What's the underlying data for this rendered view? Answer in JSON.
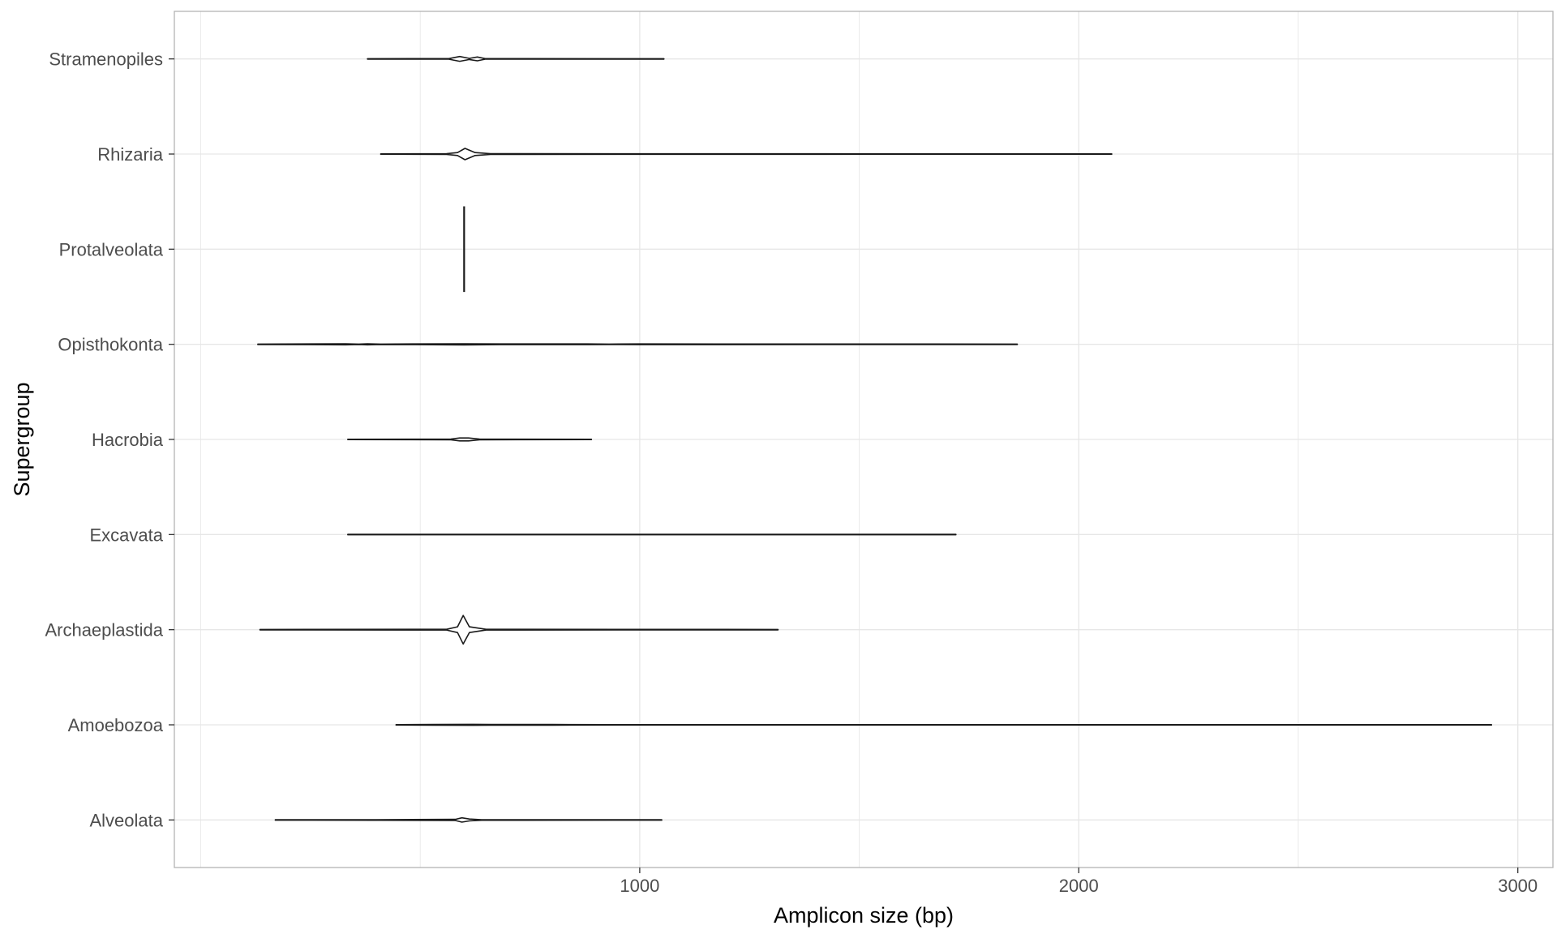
{
  "chart_data": {
    "type": "violin",
    "orientation": "horizontal",
    "xlabel": "Amplicon size (bp)",
    "ylabel": "Supergroup",
    "xlim": [
      -60,
      3080
    ],
    "x_ticks": [
      1000,
      2000,
      3000
    ],
    "grid": true,
    "theme": "light",
    "colors": {
      "outline": "#1a1a1a",
      "grid": "#e6e6e6",
      "panel_border": "#b3b3b3",
      "tick_text": "#4d4d4d"
    },
    "categories": [
      "Alveolata",
      "Amoebozoa",
      "Archaeplastida",
      "Excavata",
      "Hacrobia",
      "Opisthokonta",
      "Protalveolata",
      "Rhizaria",
      "Stramenopiles"
    ],
    "series": [
      {
        "category": "Alveolata",
        "min": 170,
        "max": 1050,
        "density": [
          [
            170,
            0.004
          ],
          [
            400,
            0.006
          ],
          [
            580,
            0.012
          ],
          [
            595,
            0.045
          ],
          [
            612,
            0.02
          ],
          [
            640,
            0.006
          ],
          [
            1050,
            0.004
          ]
        ]
      },
      {
        "category": "Amoebozoa",
        "min": 445,
        "max": 2940,
        "density": [
          [
            445,
            0.004
          ],
          [
            530,
            0.006
          ],
          [
            620,
            0.01
          ],
          [
            660,
            0.006
          ],
          [
            800,
            0.008
          ],
          [
            840,
            0.005
          ],
          [
            1000,
            0.004
          ],
          [
            2940,
            0.004
          ]
        ]
      },
      {
        "category": "Archaeplastida",
        "min": 135,
        "max": 1315,
        "density": [
          [
            135,
            0.004
          ],
          [
            560,
            0.008
          ],
          [
            585,
            0.06
          ],
          [
            598,
            0.3
          ],
          [
            612,
            0.06
          ],
          [
            650,
            0.008
          ],
          [
            1315,
            0.004
          ]
        ]
      },
      {
        "category": "Excavata",
        "min": 335,
        "max": 1720,
        "density": [
          [
            335,
            0.004
          ],
          [
            1720,
            0.004
          ]
        ]
      },
      {
        "category": "Hacrobia",
        "min": 335,
        "max": 890,
        "density": [
          [
            335,
            0.004
          ],
          [
            570,
            0.006
          ],
          [
            590,
            0.03
          ],
          [
            610,
            0.03
          ],
          [
            635,
            0.006
          ],
          [
            890,
            0.004
          ]
        ]
      },
      {
        "category": "Opisthokonta",
        "min": 130,
        "max": 1860,
        "density": [
          [
            130,
            0.004
          ],
          [
            330,
            0.01
          ],
          [
            360,
            0.004
          ],
          [
            380,
            0.01
          ],
          [
            410,
            0.004
          ],
          [
            490,
            0.008
          ],
          [
            600,
            0.012
          ],
          [
            680,
            0.008
          ],
          [
            880,
            0.008
          ],
          [
            930,
            0.004
          ],
          [
            1000,
            0.008
          ],
          [
            1860,
            0.004
          ]
        ]
      },
      {
        "category": "Protalveolata",
        "min": 600,
        "max": 600,
        "spike_halfheight": 0.45
      },
      {
        "category": "Rhizaria",
        "min": 410,
        "max": 2075,
        "density": [
          [
            410,
            0.004
          ],
          [
            560,
            0.006
          ],
          [
            585,
            0.03
          ],
          [
            602,
            0.12
          ],
          [
            625,
            0.03
          ],
          [
            660,
            0.006
          ],
          [
            2075,
            0.004
          ]
        ]
      },
      {
        "category": "Stramenopiles",
        "min": 380,
        "max": 1055,
        "density": [
          [
            380,
            0.004
          ],
          [
            565,
            0.006
          ],
          [
            590,
            0.05
          ],
          [
            612,
            0.012
          ],
          [
            630,
            0.04
          ],
          [
            648,
            0.006
          ],
          [
            1055,
            0.004
          ]
        ]
      }
    ]
  }
}
